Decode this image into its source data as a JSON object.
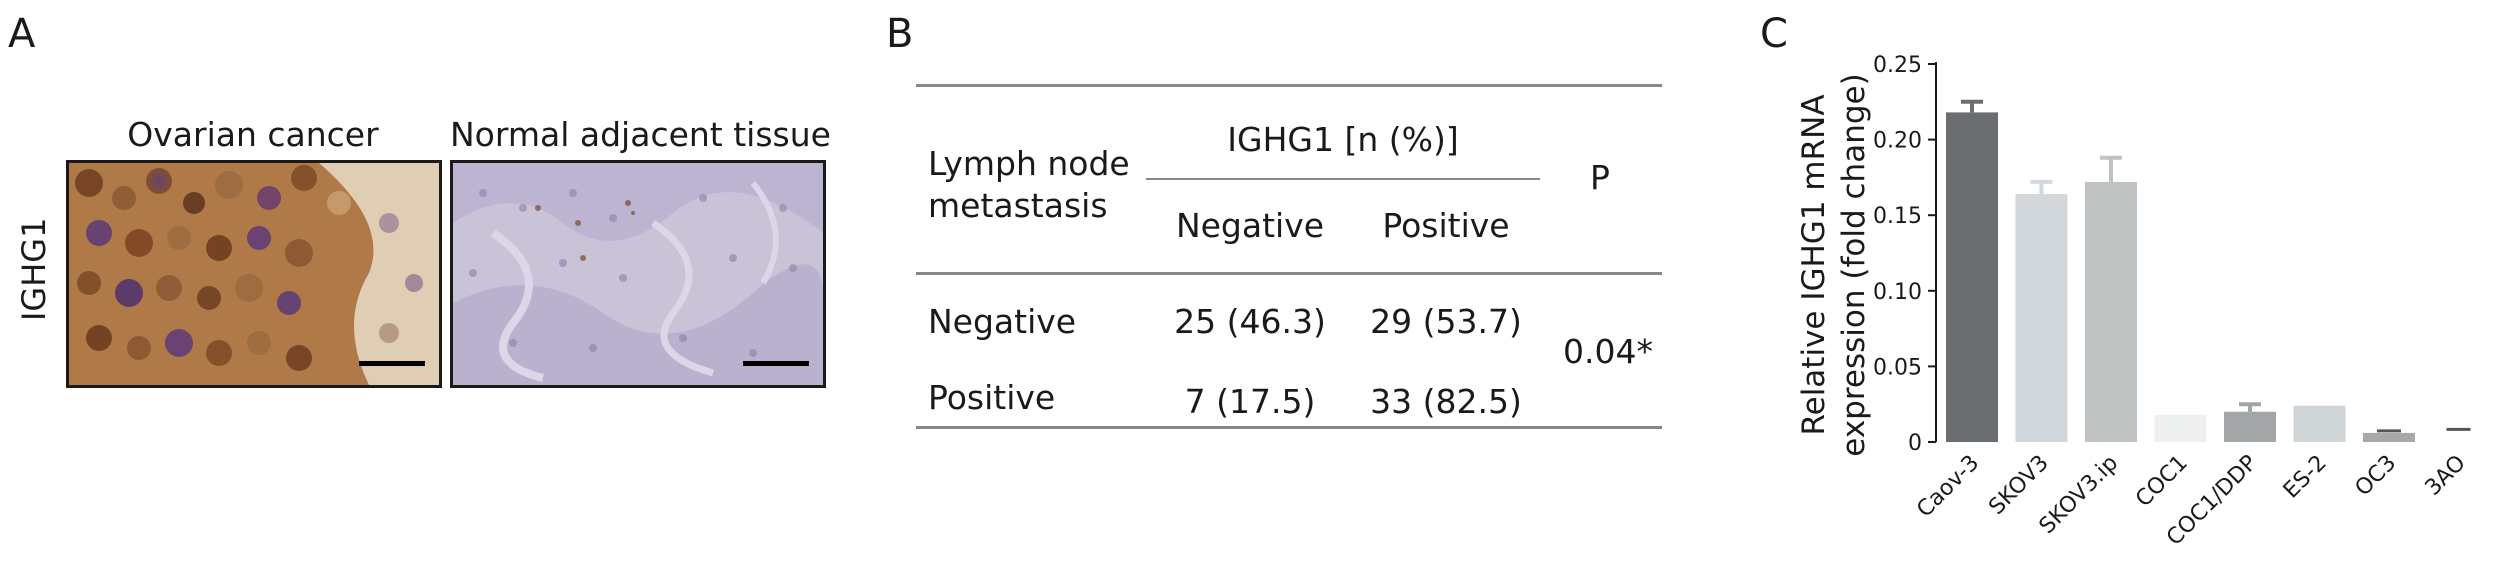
{
  "panel_a": {
    "letter": "A",
    "images": [
      {
        "title": "Ovarian cancer"
      },
      {
        "title": "Normal adjacent tissue"
      }
    ],
    "row_label": "IGHG1"
  },
  "panel_b": {
    "letter": "B",
    "header": {
      "group_label": "Lymph node metastasis",
      "group_label_line1": "Lymph node",
      "group_label_line2": "metastasis",
      "ighg1_label": "IGHG1 [n (%)]",
      "col_negative": "Negative",
      "col_positive": "Positive",
      "p_label": "P"
    },
    "rows": [
      {
        "label": "Negative",
        "negative": "25 (46.3)",
        "positive": "29 (53.7)"
      },
      {
        "label": "Positive",
        "negative": "7 (17.5)",
        "positive": "33 (82.5)"
      }
    ],
    "p_value": "0.04*"
  },
  "panel_c": {
    "letter": "C"
  },
  "chart_data": {
    "type": "bar",
    "title": "",
    "ylabel": "Relative IGHG1 mRNA expression (fold change)",
    "ylabel_line1": "Relative IGHG1 mRNA",
    "ylabel_line2": "expression (fold change)",
    "xlabel": "",
    "ylim": [
      0,
      0.25
    ],
    "yticks": [
      "0",
      "0.05",
      "0.10",
      "0.15",
      "0.20",
      "0.25"
    ],
    "ytick_values": [
      0,
      0.05,
      0.1,
      0.15,
      0.2,
      0.25
    ],
    "categories": [
      "Caov-3",
      "SKOV3",
      "SKOV3.ip",
      "COC1",
      "COC1/DDP",
      "ES-2",
      "OC3",
      "3AO"
    ],
    "values": [
      0.218,
      0.164,
      0.172,
      0.018,
      0.02,
      0.024,
      0.006,
      0.007
    ],
    "errors": [
      0.007,
      0.008,
      0.016,
      0.0,
      0.005,
      0.0,
      0.0,
      0.0
    ],
    "colors": [
      "#6b6e70",
      "#d2d8dc",
      "#bfc4c2",
      "#eef0f0",
      "#a3a6a7",
      "#d0d6d8",
      "#a8a8a8",
      "#ffffff"
    ],
    "grid": false,
    "legend": "none"
  }
}
